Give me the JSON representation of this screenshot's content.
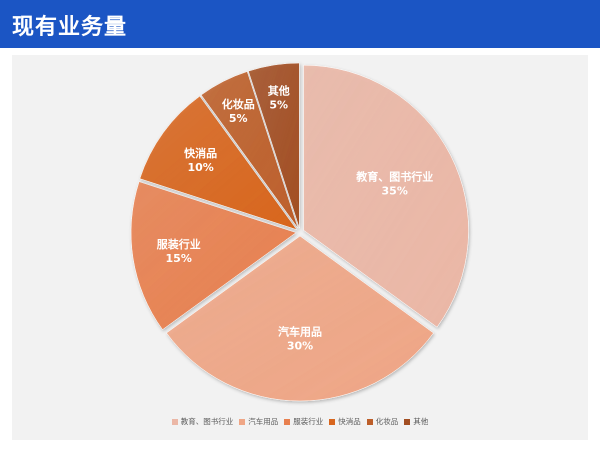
{
  "header": {
    "title": "现有业务量",
    "bar_color": "#1b55c4"
  },
  "chart_data": {
    "type": "pie",
    "categories": [
      "教育、图书行业",
      "汽车用品",
      "服装行业",
      "快消品",
      "化妆品",
      "其他"
    ],
    "values": [
      35,
      30,
      15,
      10,
      5,
      5
    ],
    "value_labels": [
      "35%",
      "30%",
      "15%",
      "10%",
      "5%",
      "5%"
    ],
    "colors": [
      "#ebb7a6",
      "#efa686",
      "#e8804f",
      "#d8661e",
      "#bd5f2a",
      "#a24e22"
    ],
    "exploded": true,
    "legend_position": "bottom"
  }
}
